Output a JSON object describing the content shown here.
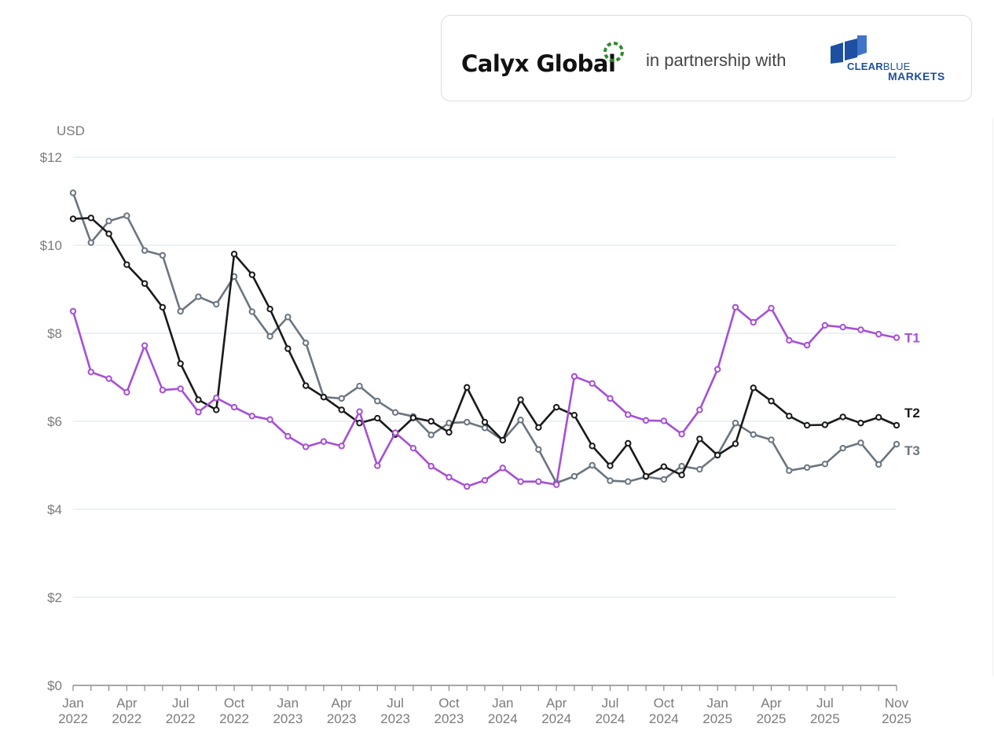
{
  "header": {
    "brand_name": "Calyx Global",
    "partner_text": "in partnership with",
    "partner_logo_line1_bold": "CLEAR",
    "partner_logo_line1_light": "BLUE",
    "partner_logo_line2": "MARKETS"
  },
  "chart_data": {
    "type": "line",
    "title": "",
    "ylabel": "USD",
    "ylim": [
      0,
      12
    ],
    "yticks": [
      0,
      2,
      4,
      6,
      8,
      10,
      12
    ],
    "ytick_labels": [
      "$0",
      "$2",
      "$4",
      "$6",
      "$8",
      "$10",
      "$12"
    ],
    "grid": true,
    "x_tick_labels": [
      {
        "index": 0,
        "month": "Jan",
        "year": "2022"
      },
      {
        "index": 3,
        "month": "Apr",
        "year": "2022"
      },
      {
        "index": 6,
        "month": "Jul",
        "year": "2022"
      },
      {
        "index": 9,
        "month": "Oct",
        "year": "2022"
      },
      {
        "index": 12,
        "month": "Jan",
        "year": "2023"
      },
      {
        "index": 15,
        "month": "Apr",
        "year": "2023"
      },
      {
        "index": 18,
        "month": "Jul",
        "year": "2023"
      },
      {
        "index": 21,
        "month": "Oct",
        "year": "2023"
      },
      {
        "index": 24,
        "month": "Jan",
        "year": "2024"
      },
      {
        "index": 27,
        "month": "Apr",
        "year": "2024"
      },
      {
        "index": 30,
        "month": "Jul",
        "year": "2024"
      },
      {
        "index": 33,
        "month": "Oct",
        "year": "2024"
      },
      {
        "index": 36,
        "month": "Jan",
        "year": "2025"
      },
      {
        "index": 39,
        "month": "Apr",
        "year": "2025"
      },
      {
        "index": 42,
        "month": "Jul",
        "year": "2025"
      },
      {
        "index": 46,
        "month": "Nov",
        "year": "2025"
      }
    ],
    "x_count": 47,
    "series": [
      {
        "name": "T1",
        "color": "#a64fd6",
        "values": [
          8.5,
          7.12,
          6.97,
          6.66,
          7.72,
          6.71,
          6.74,
          6.21,
          6.53,
          6.32,
          6.12,
          6.04,
          5.66,
          5.42,
          5.54,
          5.44,
          6.22,
          4.99,
          5.74,
          5.39,
          4.98,
          4.73,
          4.52,
          4.66,
          4.94,
          4.63,
          4.63,
          4.56,
          7.02,
          6.86,
          6.52,
          6.15,
          6.02,
          6.01,
          5.71,
          6.26,
          7.18,
          8.59,
          8.25,
          8.57,
          7.84,
          7.73,
          8.18,
          8.14,
          8.08,
          7.98,
          7.9
        ]
      },
      {
        "name": "T2",
        "color": "#1a1a1a",
        "values": [
          10.6,
          10.62,
          10.26,
          9.56,
          9.13,
          8.59,
          7.31,
          6.49,
          6.26,
          9.8,
          9.33,
          8.55,
          7.65,
          6.81,
          6.55,
          6.26,
          5.96,
          6.07,
          5.7,
          6.08,
          6.0,
          5.75,
          6.77,
          5.98,
          5.57,
          6.49,
          5.86,
          6.32,
          6.14,
          5.44,
          4.99,
          5.5,
          4.75,
          4.97,
          4.78,
          5.6,
          5.23,
          5.49,
          6.76,
          6.46,
          6.12,
          5.91,
          5.92,
          6.1,
          5.96,
          6.09,
          5.91
        ]
      },
      {
        "name": "T3",
        "color": "#6b7580",
        "values": [
          11.19,
          10.06,
          10.55,
          10.67,
          9.88,
          9.77,
          8.5,
          8.83,
          8.66,
          9.29,
          8.49,
          7.93,
          8.37,
          7.78,
          6.55,
          6.52,
          6.8,
          6.46,
          6.2,
          6.11,
          5.69,
          5.96,
          5.98,
          5.85,
          5.57,
          6.03,
          5.36,
          4.6,
          4.75,
          5.0,
          4.65,
          4.63,
          4.74,
          4.68,
          4.98,
          4.91,
          5.24,
          5.96,
          5.7,
          5.58,
          4.88,
          4.95,
          5.03,
          5.39,
          5.51,
          5.02,
          5.48
        ]
      }
    ]
  }
}
